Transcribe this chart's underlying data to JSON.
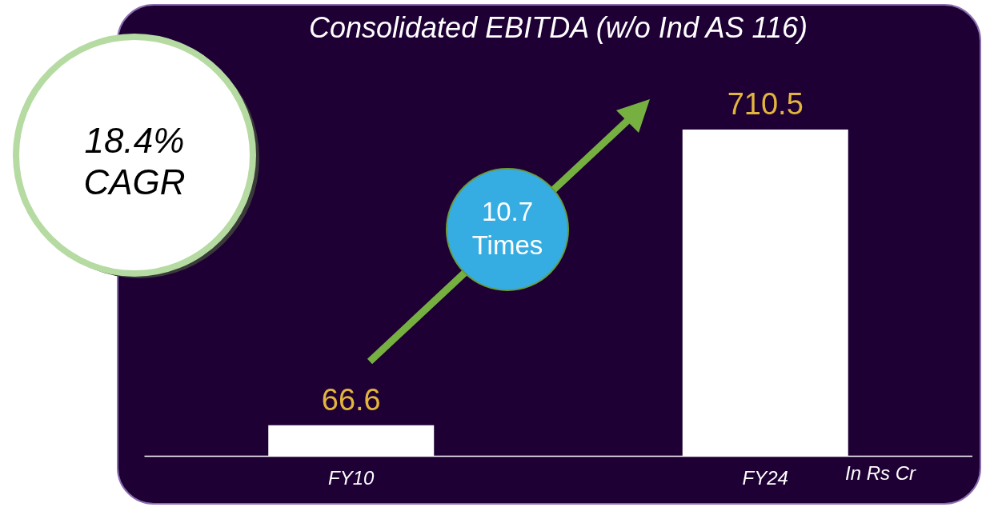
{
  "chart_data": {
    "type": "bar",
    "title": "Consolidated EBITDA (w/o Ind AS 116)",
    "categories": [
      "FY10",
      "FY24"
    ],
    "values": [
      66.6,
      710.5
    ],
    "color": "#ffffff",
    "data_labels": true,
    "annotations": [
      "18.4% CAGR",
      "10.7 Times",
      "In Rs Cr"
    ]
  }
}
